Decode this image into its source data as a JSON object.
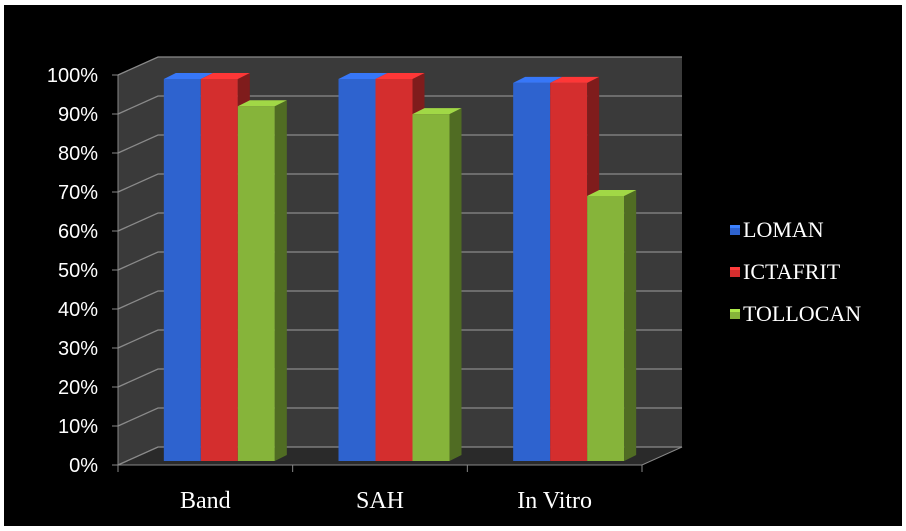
{
  "chart_data": {
    "type": "bar",
    "categories": [
      "Band",
      "SAH",
      "In Vitro"
    ],
    "series": [
      {
        "name": "LOMAN",
        "values": [
          100,
          100,
          99
        ],
        "color": "#2e63cf"
      },
      {
        "name": "ICTAFRIT",
        "values": [
          100,
          100,
          99
        ],
        "color": "#d42e2e"
      },
      {
        "name": "TOLLOCAN",
        "values": [
          93,
          91,
          70
        ],
        "color": "#86b43a"
      }
    ],
    "yticks": [
      "0%",
      "10%",
      "20%",
      "30%",
      "40%",
      "50%",
      "60%",
      "70%",
      "80%",
      "90%",
      "100%"
    ],
    "ylim": [
      0,
      100
    ],
    "grid": true,
    "legend_position": "right",
    "style": "3d-clustered-column",
    "background": "#000000"
  }
}
